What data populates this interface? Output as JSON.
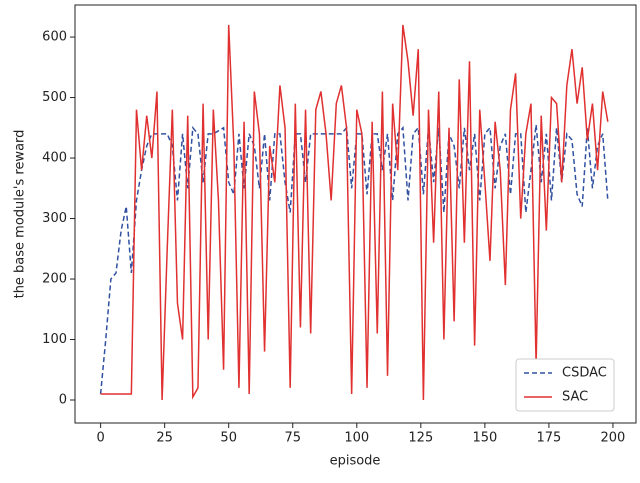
{
  "chart_data": {
    "type": "line",
    "xlabel": "episode",
    "ylabel": "the base module's reward",
    "x": [
      0,
      2,
      4,
      6,
      8,
      10,
      12,
      14,
      16,
      18,
      20,
      22,
      24,
      26,
      28,
      30,
      32,
      34,
      36,
      38,
      40,
      42,
      44,
      46,
      48,
      50,
      52,
      54,
      56,
      58,
      60,
      62,
      64,
      66,
      68,
      70,
      72,
      74,
      76,
      78,
      80,
      82,
      84,
      86,
      88,
      90,
      92,
      94,
      96,
      98,
      100,
      102,
      104,
      106,
      108,
      110,
      112,
      114,
      116,
      118,
      120,
      122,
      124,
      126,
      128,
      130,
      132,
      134,
      136,
      138,
      140,
      142,
      144,
      146,
      148,
      150,
      152,
      154,
      156,
      158,
      160,
      162,
      164,
      166,
      168,
      170,
      172,
      174,
      176,
      178,
      180,
      182,
      184,
      186,
      188,
      190,
      192,
      194,
      196,
      198
    ],
    "series": [
      {
        "name": "CSDAC",
        "color": "#3050a0",
        "linestyle": "dashed",
        "values": [
          10,
          100,
          200,
          210,
          280,
          320,
          210,
          330,
          380,
          420,
          440,
          440,
          440,
          440,
          420,
          330,
          440,
          350,
          450,
          440,
          360,
          440,
          440,
          445,
          450,
          360,
          340,
          440,
          350,
          440,
          420,
          350,
          440,
          330,
          440,
          440,
          360,
          310,
          440,
          440,
          360,
          440,
          440,
          440,
          440,
          440,
          440,
          440,
          450,
          350,
          440,
          440,
          340,
          440,
          440,
          380,
          440,
          330,
          440,
          450,
          330,
          440,
          450,
          340,
          450,
          360,
          450,
          310,
          440,
          420,
          350,
          450,
          380,
          440,
          330,
          440,
          450,
          350,
          420,
          440,
          340,
          440,
          440,
          310,
          380,
          455,
          360,
          440,
          330,
          450,
          360,
          440,
          430,
          340,
          320,
          450,
          350,
          420,
          440,
          330
        ]
      },
      {
        "name": "SAC",
        "color": "#e03030",
        "linestyle": "solid",
        "values": [
          10,
          10,
          10,
          10,
          10,
          10,
          10,
          480,
          380,
          470,
          400,
          510,
          0,
          250,
          480,
          160,
          100,
          470,
          5,
          20,
          490,
          100,
          480,
          330,
          50,
          620,
          420,
          20,
          460,
          10,
          510,
          440,
          80,
          420,
          360,
          520,
          450,
          20,
          490,
          120,
          480,
          110,
          480,
          510,
          440,
          330,
          490,
          520,
          450,
          10,
          480,
          440,
          20,
          460,
          110,
          510,
          40,
          490,
          380,
          620,
          560,
          470,
          580,
          0,
          480,
          260,
          510,
          100,
          450,
          130,
          530,
          260,
          560,
          90,
          480,
          360,
          230,
          460,
          380,
          190,
          480,
          540,
          300,
          440,
          490,
          60,
          470,
          280,
          500,
          490,
          360,
          520,
          580,
          490,
          550,
          430,
          490,
          380,
          510,
          460
        ]
      }
    ],
    "xlim": [
      -10,
      209
    ],
    "ylim": [
      -38,
      653
    ],
    "xticks": [
      0,
      25,
      50,
      75,
      100,
      125,
      150,
      175,
      200
    ],
    "yticks": [
      0,
      100,
      200,
      300,
      400,
      500,
      600
    ],
    "legend": "lower right"
  }
}
